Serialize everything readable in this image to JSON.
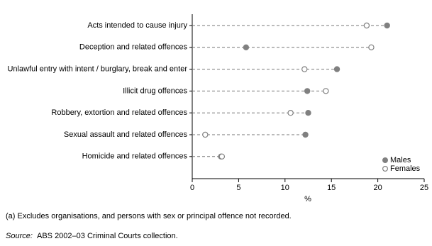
{
  "chart_data": {
    "type": "dot",
    "categories": [
      "Acts intended to cause injury",
      "Deception and related offences",
      "Unlawful entry with intent / burglary, break and enter",
      "Illicit drug offences",
      "Robbery, extortion and related offences",
      "Sexual assault and related offences",
      "Homicide and related offences"
    ],
    "series": [
      {
        "name": "Males",
        "color": "#808080",
        "filled": true,
        "values": [
          21.0,
          5.8,
          15.6,
          12.4,
          12.5,
          12.2,
          3.1
        ]
      },
      {
        "name": "Females",
        "color": "#808080",
        "filled": false,
        "values": [
          18.8,
          19.3,
          12.1,
          14.4,
          10.6,
          1.4,
          3.2
        ]
      }
    ],
    "xlabel": "%",
    "xlim": [
      0,
      25
    ],
    "xticks": [
      0,
      5,
      10,
      15,
      20,
      25
    ],
    "grid": false,
    "legend": "lower right",
    "footnote": "(a) Excludes organisations, and persons with sex or principal offence not recorded.",
    "source_label": "Source:",
    "source": "ABS 2002–03 Criminal Courts collection."
  }
}
